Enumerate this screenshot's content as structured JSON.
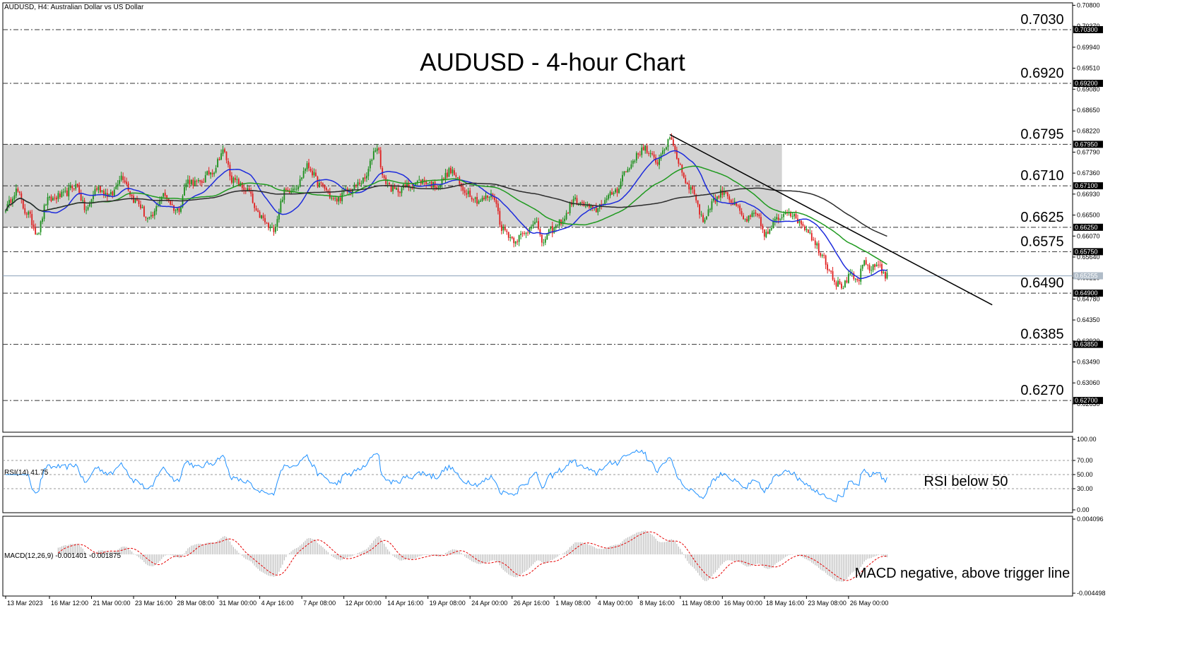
{
  "header": {
    "symbol_label": "AUDUSD, H4:  Australian Dollar vs US Dollar",
    "title": "AUDUSD - 4-hour Chart"
  },
  "chart_data": {
    "type": "candlestick",
    "title": "AUDUSD - 4-hour Chart",
    "ylim": [
      0.6205,
      0.7085
    ],
    "price_axis_ticks": [
      "0.70800",
      "0.70370",
      "0.69940",
      "0.69510",
      "0.69080",
      "0.68650",
      "0.68220",
      "0.67790",
      "0.67360",
      "0.66930",
      "0.66500",
      "0.66070",
      "0.65640",
      "0.65210",
      "0.64780",
      "0.64350",
      "0.63920",
      "0.63490",
      "0.63060",
      "0.62630"
    ],
    "current_price_label": "0.65255",
    "current_price": 0.65255,
    "levels": [
      {
        "value": 0.703,
        "label": "0.7030",
        "tag": "0.70300"
      },
      {
        "value": 0.692,
        "label": "0.6920",
        "tag": "0.69200"
      },
      {
        "value": 0.6795,
        "label": "0.6795",
        "tag": "0.67950"
      },
      {
        "value": 0.671,
        "label": "0.6710",
        "tag": "0.67100"
      },
      {
        "value": 0.6625,
        "label": "0.6625",
        "tag": "0.66250"
      },
      {
        "value": 0.6575,
        "label": "0.6575",
        "tag": "0.65750"
      },
      {
        "value": 0.649,
        "label": "0.6490",
        "tag": "0.64900"
      },
      {
        "value": 0.6385,
        "label": "0.6385",
        "tag": "0.63850"
      },
      {
        "value": 0.627,
        "label": "0.6270",
        "tag": "0.62700"
      }
    ],
    "range_box": {
      "from_label": "13 Mar 2023",
      "to_label": "18 May 16:00",
      "low": 0.6625,
      "high": 0.6795
    },
    "trendline": {
      "start": {
        "date": "8 May 2023 20:00",
        "price": 0.6815
      },
      "end": {
        "date": "30 May 2023",
        "price": 0.6466
      }
    },
    "x_labels": [
      "13 Mar 2023",
      "16 Mar 12:00",
      "21 Mar 00:00",
      "23 Mar 16:00",
      "28 Mar 08:00",
      "31 Mar 00:00",
      "4 Apr 16:00",
      "7 Apr 08:00",
      "12 Apr 00:00",
      "14 Apr 16:00",
      "19 Apr 08:00",
      "24 Apr 00:00",
      "26 Apr 16:00",
      "1 May 08:00",
      "4 May 00:00",
      "8 May 16:00",
      "11 May 08:00",
      "16 May 00:00",
      "18 May 16:00",
      "23 May 08:00",
      "26 May 00:00"
    ],
    "close_anchors": [
      [
        0,
        0.6665
      ],
      [
        6,
        0.67
      ],
      [
        12,
        0.6655
      ],
      [
        18,
        0.6615
      ],
      [
        24,
        0.668
      ],
      [
        32,
        0.669
      ],
      [
        40,
        0.671
      ],
      [
        46,
        0.666
      ],
      [
        52,
        0.6705
      ],
      [
        60,
        0.669
      ],
      [
        66,
        0.673
      ],
      [
        74,
        0.668
      ],
      [
        82,
        0.664
      ],
      [
        90,
        0.669
      ],
      [
        98,
        0.666
      ],
      [
        104,
        0.672
      ],
      [
        110,
        0.6715
      ],
      [
        118,
        0.674
      ],
      [
        124,
        0.678
      ],
      [
        130,
        0.672
      ],
      [
        138,
        0.67
      ],
      [
        144,
        0.665
      ],
      [
        152,
        0.662
      ],
      [
        160,
        0.67
      ],
      [
        166,
        0.671
      ],
      [
        172,
        0.675
      ],
      [
        180,
        0.671
      ],
      [
        188,
        0.668
      ],
      [
        196,
        0.67
      ],
      [
        204,
        0.672
      ],
      [
        212,
        0.679
      ],
      [
        216,
        0.672
      ],
      [
        222,
        0.67
      ],
      [
        230,
        0.671
      ],
      [
        238,
        0.672
      ],
      [
        246,
        0.671
      ],
      [
        254,
        0.674
      ],
      [
        262,
        0.67
      ],
      [
        270,
        0.668
      ],
      [
        278,
        0.669
      ],
      [
        284,
        0.662
      ],
      [
        290,
        0.66
      ],
      [
        296,
        0.661
      ],
      [
        302,
        0.664
      ],
      [
        306,
        0.6595
      ],
      [
        312,
        0.662
      ],
      [
        318,
        0.664
      ],
      [
        324,
        0.668
      ],
      [
        330,
        0.667
      ],
      [
        336,
        0.666
      ],
      [
        342,
        0.668
      ],
      [
        348,
        0.67
      ],
      [
        354,
        0.674
      ],
      [
        360,
        0.677
      ],
      [
        364,
        0.679
      ],
      [
        368,
        0.677
      ],
      [
        372,
        0.676
      ],
      [
        376,
        0.679
      ],
      [
        380,
        0.6805
      ],
      [
        384,
        0.676
      ],
      [
        388,
        0.672
      ],
      [
        392,
        0.67
      ],
      [
        398,
        0.664
      ],
      [
        404,
        0.668
      ],
      [
        410,
        0.67
      ],
      [
        416,
        0.667
      ],
      [
        422,
        0.664
      ],
      [
        428,
        0.665
      ],
      [
        434,
        0.661
      ],
      [
        440,
        0.664
      ],
      [
        446,
        0.666
      ],
      [
        452,
        0.664
      ],
      [
        458,
        0.662
      ],
      [
        462,
        0.659
      ],
      [
        466,
        0.657
      ],
      [
        470,
        0.654
      ],
      [
        474,
        0.651
      ],
      [
        478,
        0.6505
      ],
      [
        482,
        0.6525
      ],
      [
        486,
        0.6515
      ],
      [
        490,
        0.655
      ],
      [
        494,
        0.654
      ],
      [
        498,
        0.655
      ],
      [
        502,
        0.6525
      ]
    ],
    "series": [
      {
        "name": "",
        "color": "#1d2bdc"
      },
      {
        "name": "",
        "color": "#1f9a1f"
      },
      {
        "name": "",
        "color": "#2b2b2b"
      }
    ]
  },
  "rsi_panel": {
    "label": "RSI(14) 41.75",
    "annotation": "RSI below 50",
    "ylim": [
      0,
      100
    ],
    "levels": [
      30,
      50,
      70
    ],
    "ticks": [
      "100.00",
      "70.00",
      "50.00",
      "30.00",
      "0.00"
    ],
    "color": "#1e90ff"
  },
  "macd_panel": {
    "label": "MACD(12,26,9) -0.001401 -0.001875",
    "annotation": "MACD negative, above trigger line",
    "ticks": [
      "0.004096",
      "-0.004498"
    ],
    "ylim": [
      -0.004498,
      0.004096
    ],
    "histogram_color": "#bdbdbd",
    "signal_color": "#e60000"
  }
}
